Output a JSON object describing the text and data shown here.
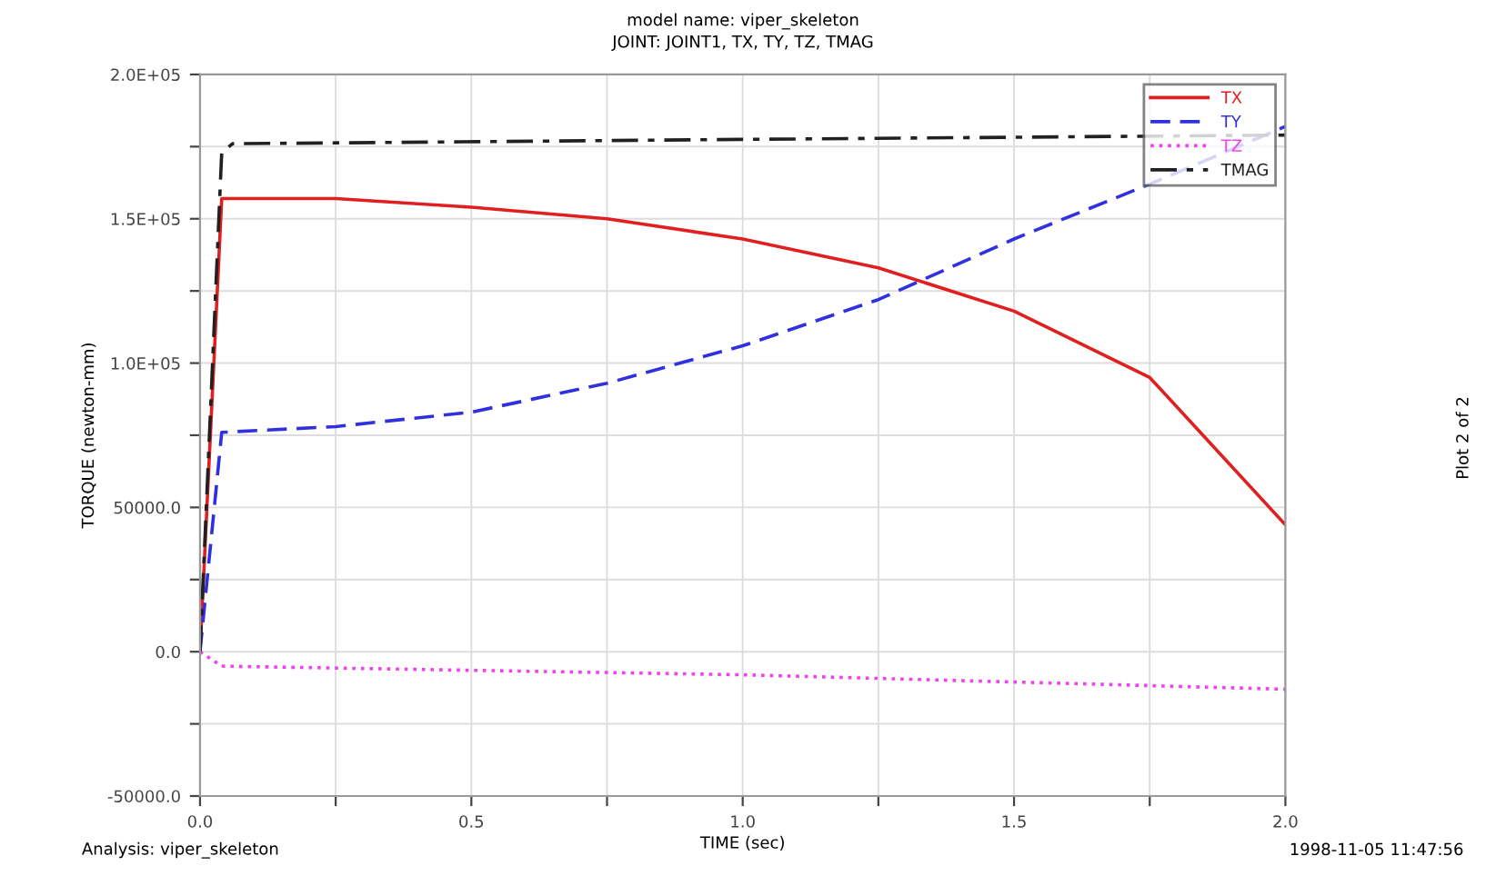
{
  "chart_data": {
    "type": "line",
    "title": "model name: viper_skeleton",
    "subtitle": "JOINT: JOINT1, TX, TY, TZ, TMAG",
    "xlabel": "TIME (sec)",
    "ylabel": "TORQUE (newton-mm)",
    "annotations": [
      "Analysis: viper_skeleton",
      "1998-11-05 11:47:56",
      "Plot 2 of 2"
    ],
    "xlim": [
      0,
      2.0
    ],
    "ylim": [
      -50000,
      200000
    ],
    "xticks": [
      {
        "value": 0,
        "label": "0.0"
      },
      {
        "value": 0.25,
        "label": null
      },
      {
        "value": 0.5,
        "label": "0.5"
      },
      {
        "value": 0.75,
        "label": null
      },
      {
        "value": 1.0,
        "label": "1.0"
      },
      {
        "value": 1.25,
        "label": null
      },
      {
        "value": 1.5,
        "label": "1.5"
      },
      {
        "value": 1.75,
        "label": null
      },
      {
        "value": 2.0,
        "label": "2.0"
      }
    ],
    "yticks": [
      {
        "value": -50000,
        "label": "-50000.0"
      },
      {
        "value": -25000,
        "label": null
      },
      {
        "value": 0,
        "label": "0.0"
      },
      {
        "value": 25000,
        "label": null
      },
      {
        "value": 50000,
        "label": "50000.0"
      },
      {
        "value": 75000,
        "label": null
      },
      {
        "value": 100000,
        "label": "1.0E+05"
      },
      {
        "value": 125000,
        "label": null
      },
      {
        "value": 150000,
        "label": "1.5E+05"
      },
      {
        "value": 175000,
        "label": null
      },
      {
        "value": 200000,
        "label": "2.0E+05"
      }
    ],
    "grid": true,
    "legend": "top right",
    "series": [
      {
        "name": "TX",
        "color": "#e02020",
        "line_style": "solid",
        "x": [
          0,
          0.04,
          0.25,
          0.5,
          0.75,
          1.0,
          1.25,
          1.5,
          1.75,
          2.0
        ],
        "values": [
          0,
          157000,
          157000,
          154000,
          150000,
          143000,
          133000,
          118000,
          95000,
          44000
        ]
      },
      {
        "name": "TY",
        "color": "#3030e0",
        "line_style": "dashed",
        "x": [
          0,
          0.04,
          0.25,
          0.5,
          0.75,
          1.0,
          1.25,
          1.5,
          1.75,
          2.0
        ],
        "values": [
          0,
          76000,
          78000,
          83000,
          93000,
          106000,
          122000,
          143000,
          162000,
          182000
        ]
      },
      {
        "name": "TZ",
        "color": "#f040f0",
        "line_style": "dotted",
        "x": [
          0,
          0.04,
          1.0,
          2.0
        ],
        "values": [
          0,
          -5000,
          -8000,
          -13000
        ]
      },
      {
        "name": "TMAG",
        "color": "#202020",
        "line_style": "dashdot",
        "x": [
          0,
          0.04,
          0.06,
          1.0,
          2.0
        ],
        "values": [
          0,
          173000,
          176000,
          177500,
          179000
        ]
      }
    ]
  }
}
